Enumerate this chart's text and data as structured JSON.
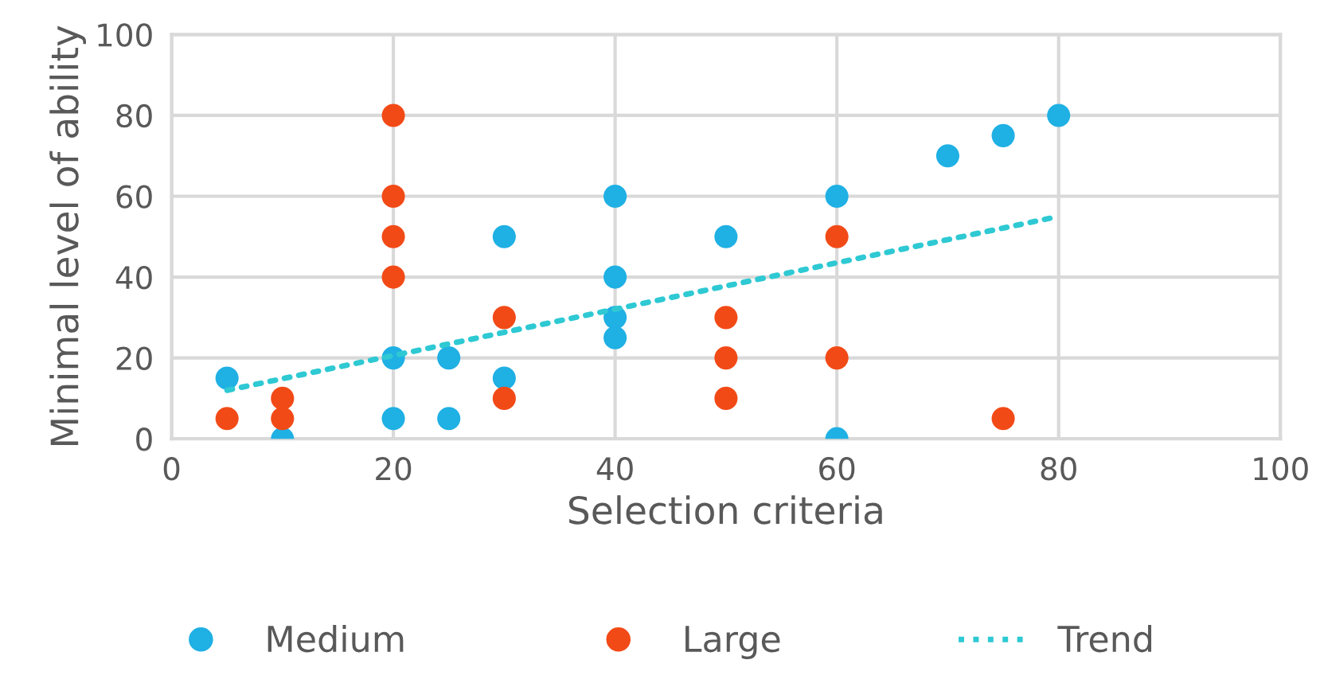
{
  "chart_data": {
    "type": "scatter",
    "xlabel": "Selection criteria",
    "ylabel": "Minimal level of ability",
    "xlim": [
      0,
      100
    ],
    "xticks": [
      0,
      20,
      40,
      60,
      80,
      100
    ],
    "ylim": [
      0,
      100
    ],
    "yticks": [
      0,
      20,
      40,
      60,
      80,
      100
    ],
    "grid": true,
    "legend": "bottom",
    "marker": "circle",
    "series": [
      {
        "name": "Medium",
        "color": "#1fb0e4",
        "x": [
          5,
          10,
          20,
          20,
          25,
          25,
          30,
          30,
          40,
          40,
          40,
          40,
          50,
          60,
          60,
          70,
          75,
          80
        ],
        "values": [
          15,
          0,
          20,
          5,
          20,
          5,
          50,
          15,
          60,
          40,
          30,
          25,
          50,
          60,
          0,
          70,
          75,
          80
        ]
      },
      {
        "name": "Large",
        "color": "#f24a17",
        "x": [
          5,
          10,
          10,
          20,
          20,
          20,
          20,
          30,
          30,
          50,
          50,
          50,
          60,
          60,
          75
        ],
        "values": [
          5,
          10,
          5,
          80,
          60,
          50,
          40,
          30,
          10,
          30,
          20,
          10,
          50,
          20,
          5
        ]
      },
      {
        "name": "Trend",
        "type": "line",
        "color": "#2ec9d3",
        "line_style": "dotted",
        "marker": "none",
        "x": [
          5,
          80
        ],
        "values": [
          12,
          55
        ]
      }
    ]
  }
}
